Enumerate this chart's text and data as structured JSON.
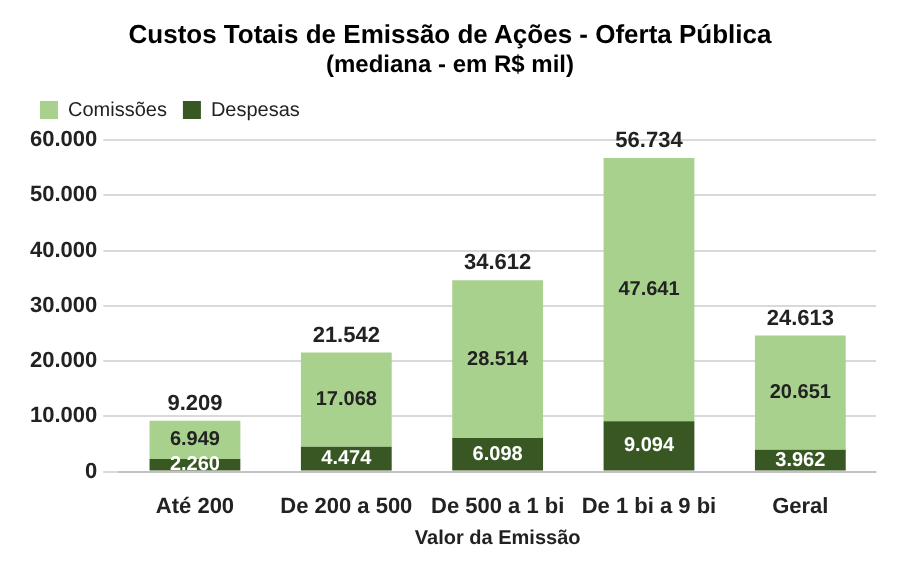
{
  "chart_data": {
    "type": "bar",
    "title": "Custos Totais de Emissão de Ações - Oferta Pública",
    "subtitle": "(mediana - em R$ mil)",
    "xlabel": "Valor da Emissão",
    "categories": [
      "Até 200",
      "De 200 a 500",
      "De 500 a 1 bi",
      "De 1 bi a 9 bi",
      "Geral"
    ],
    "series": [
      {
        "name": "Despesas",
        "color": "#385723",
        "values": [
          2260,
          4474,
          6098,
          9094,
          3962
        ],
        "value_labels": [
          "2.260",
          "4.474",
          "6.098",
          "9.094",
          "3.962"
        ]
      },
      {
        "name": "Comissões",
        "color": "#a9d18e",
        "values": [
          6949,
          17068,
          28514,
          47641,
          20651
        ],
        "value_labels": [
          "6.949",
          "17.068",
          "28.514",
          "47.641",
          "20.651"
        ]
      }
    ],
    "stacked": true,
    "totals": [
      "9.209",
      "21.542",
      "34.612",
      "56.734",
      "24.613"
    ],
    "ylim": [
      0,
      60000
    ],
    "yticks": [
      {
        "value": 0,
        "label": "0"
      },
      {
        "value": 10000,
        "label": "10.000"
      },
      {
        "value": 20000,
        "label": "20.000"
      },
      {
        "value": 30000,
        "label": "30.000"
      },
      {
        "value": 40000,
        "label": "40.000"
      },
      {
        "value": 50000,
        "label": "50.000"
      },
      {
        "value": 60000,
        "label": "60.000"
      }
    ],
    "grid": "y",
    "legend": "top left"
  }
}
